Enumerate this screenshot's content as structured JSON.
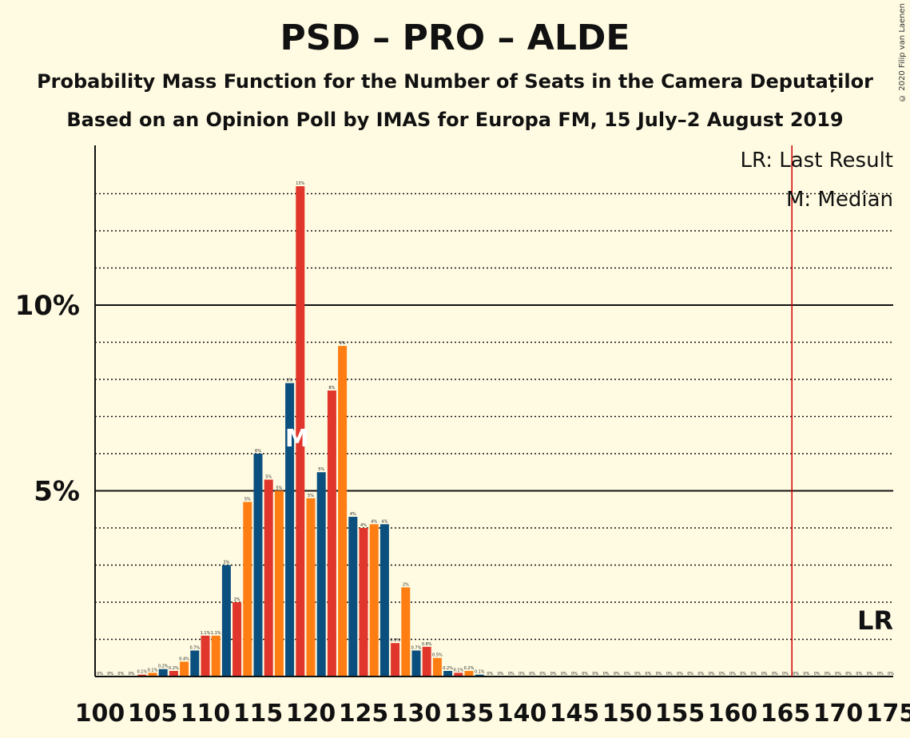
{
  "title": "PSD – PRO – ALDE",
  "subtitle_1": "Probability Mass Function for the Number of Seats in the Camera Deputaților",
  "subtitle_2": "Based on an Opinion Poll by IMAS for Europa FM, 15 July–2 August 2019",
  "copyright": "© 2020 Filip van Laenen",
  "legend": {
    "last_result": "LR: Last Result",
    "median": "M: Median"
  },
  "lr_marker": "LR",
  "median_marker": "M",
  "colors": {
    "blue": "#0B4F7F",
    "red": "#E0362B",
    "orange": "#FF7E14",
    "last_result_line": "#CC0000",
    "background": "#FFFBE2"
  },
  "chart_data": {
    "type": "bar",
    "x_min": 100,
    "x_max": 175,
    "xlabel": "",
    "ylabel": "",
    "ylim": [
      0,
      14.3
    ],
    "y_ticks_major": [
      {
        "value": 5,
        "label": "5%"
      },
      {
        "value": 10,
        "label": "10%"
      }
    ],
    "y_ticks_minor": [
      1,
      2,
      3,
      4,
      6,
      7,
      8,
      9,
      11,
      12,
      13
    ],
    "x_ticks": [
      100,
      105,
      110,
      115,
      120,
      125,
      130,
      135,
      140,
      145,
      150,
      155,
      160,
      165,
      170,
      175
    ],
    "last_result": 166,
    "median": 119,
    "bar_color_cycle": [
      "blue",
      "red",
      "orange"
    ],
    "seats": [
      100,
      101,
      102,
      103,
      104,
      105,
      106,
      107,
      108,
      109,
      110,
      111,
      112,
      113,
      114,
      115,
      116,
      117,
      118,
      119,
      120,
      121,
      122,
      123,
      124,
      125,
      126,
      127,
      128,
      129,
      130,
      131,
      132,
      133,
      134,
      135,
      136,
      137,
      138,
      139,
      140,
      141,
      142,
      143,
      144,
      145,
      146,
      147,
      148,
      149,
      150,
      151,
      152,
      153,
      154,
      155,
      156,
      157,
      158,
      159,
      160,
      161,
      162,
      163,
      164,
      165,
      166,
      167,
      168,
      169,
      170,
      171,
      172,
      173,
      174,
      175
    ],
    "values": [
      0,
      0,
      0,
      0,
      0.05,
      0.1,
      0.2,
      0.15,
      0.4,
      0.7,
      1.1,
      1.1,
      3.0,
      2.0,
      4.7,
      6.0,
      5.3,
      5.0,
      7.9,
      13.2,
      4.8,
      5.5,
      7.7,
      8.9,
      4.3,
      4.0,
      4.1,
      4.1,
      0.9,
      2.4,
      0.7,
      0.8,
      0.5,
      0.15,
      0.1,
      0.15,
      0.05,
      0,
      0,
      0,
      0,
      0,
      0,
      0,
      0,
      0,
      0,
      0,
      0,
      0,
      0,
      0,
      0,
      0,
      0,
      0,
      0,
      0,
      0,
      0,
      0,
      0,
      0,
      0,
      0,
      0,
      0,
      0,
      0,
      0,
      0,
      0,
      0,
      0,
      0,
      0
    ],
    "data_labels": [
      "0%",
      "0%",
      "0%",
      "0%",
      "0.1%",
      "0.1%",
      "0.2%",
      "0.2%",
      "0.4%",
      "0.7%",
      "1.1%",
      "1.1%",
      "3%",
      "2%",
      "5%",
      "6%",
      "5%",
      "5%",
      "8%",
      "13%",
      "5%",
      "5%",
      "8%",
      "9%",
      "4%",
      "4%",
      "4%",
      "4%",
      "0.9%",
      "2%",
      "0.7%",
      "0.8%",
      "0.5%",
      "0.2%",
      "0.1%",
      "0.2%",
      "0.1%",
      "0%",
      "0%",
      "0%",
      "0%",
      "0%",
      "0%",
      "0%",
      "0%",
      "0%",
      "0%",
      "0%",
      "0%",
      "0%",
      "0%",
      "0%",
      "0%",
      "0%",
      "0%",
      "0%",
      "0%",
      "0%",
      "0%",
      "0%",
      "0%",
      "0%",
      "0%",
      "0%",
      "0%",
      "0%",
      "0%",
      "0%",
      "0%",
      "0%",
      "0%",
      "0%",
      "0%",
      "0%",
      "0%",
      "0%"
    ]
  }
}
